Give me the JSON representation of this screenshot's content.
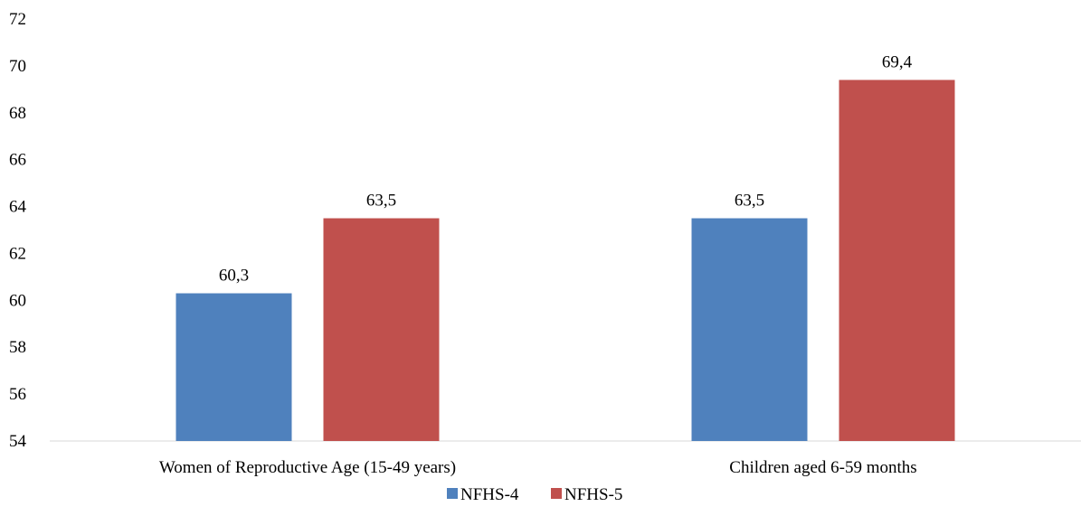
{
  "chart_data": {
    "type": "bar",
    "title": "",
    "xlabel": "",
    "ylabel": "",
    "ylim": [
      54,
      72
    ],
    "yticks": [
      54,
      56,
      58,
      60,
      62,
      64,
      66,
      68,
      70,
      72
    ],
    "grid": false,
    "legend_position": "bottom",
    "categories": [
      "Women of Reproductive Age (15-49 years)",
      "Children aged 6-59 months"
    ],
    "series": [
      {
        "name": "NFHS-4",
        "color": "#4F81BD",
        "values": [
          60.3,
          63.5
        ],
        "labels": [
          "60,3",
          "63,5"
        ]
      },
      {
        "name": "NFHS-5",
        "color": "#C0504D",
        "values": [
          63.5,
          69.4
        ],
        "labels": [
          "63,5",
          "69,4"
        ]
      }
    ]
  }
}
